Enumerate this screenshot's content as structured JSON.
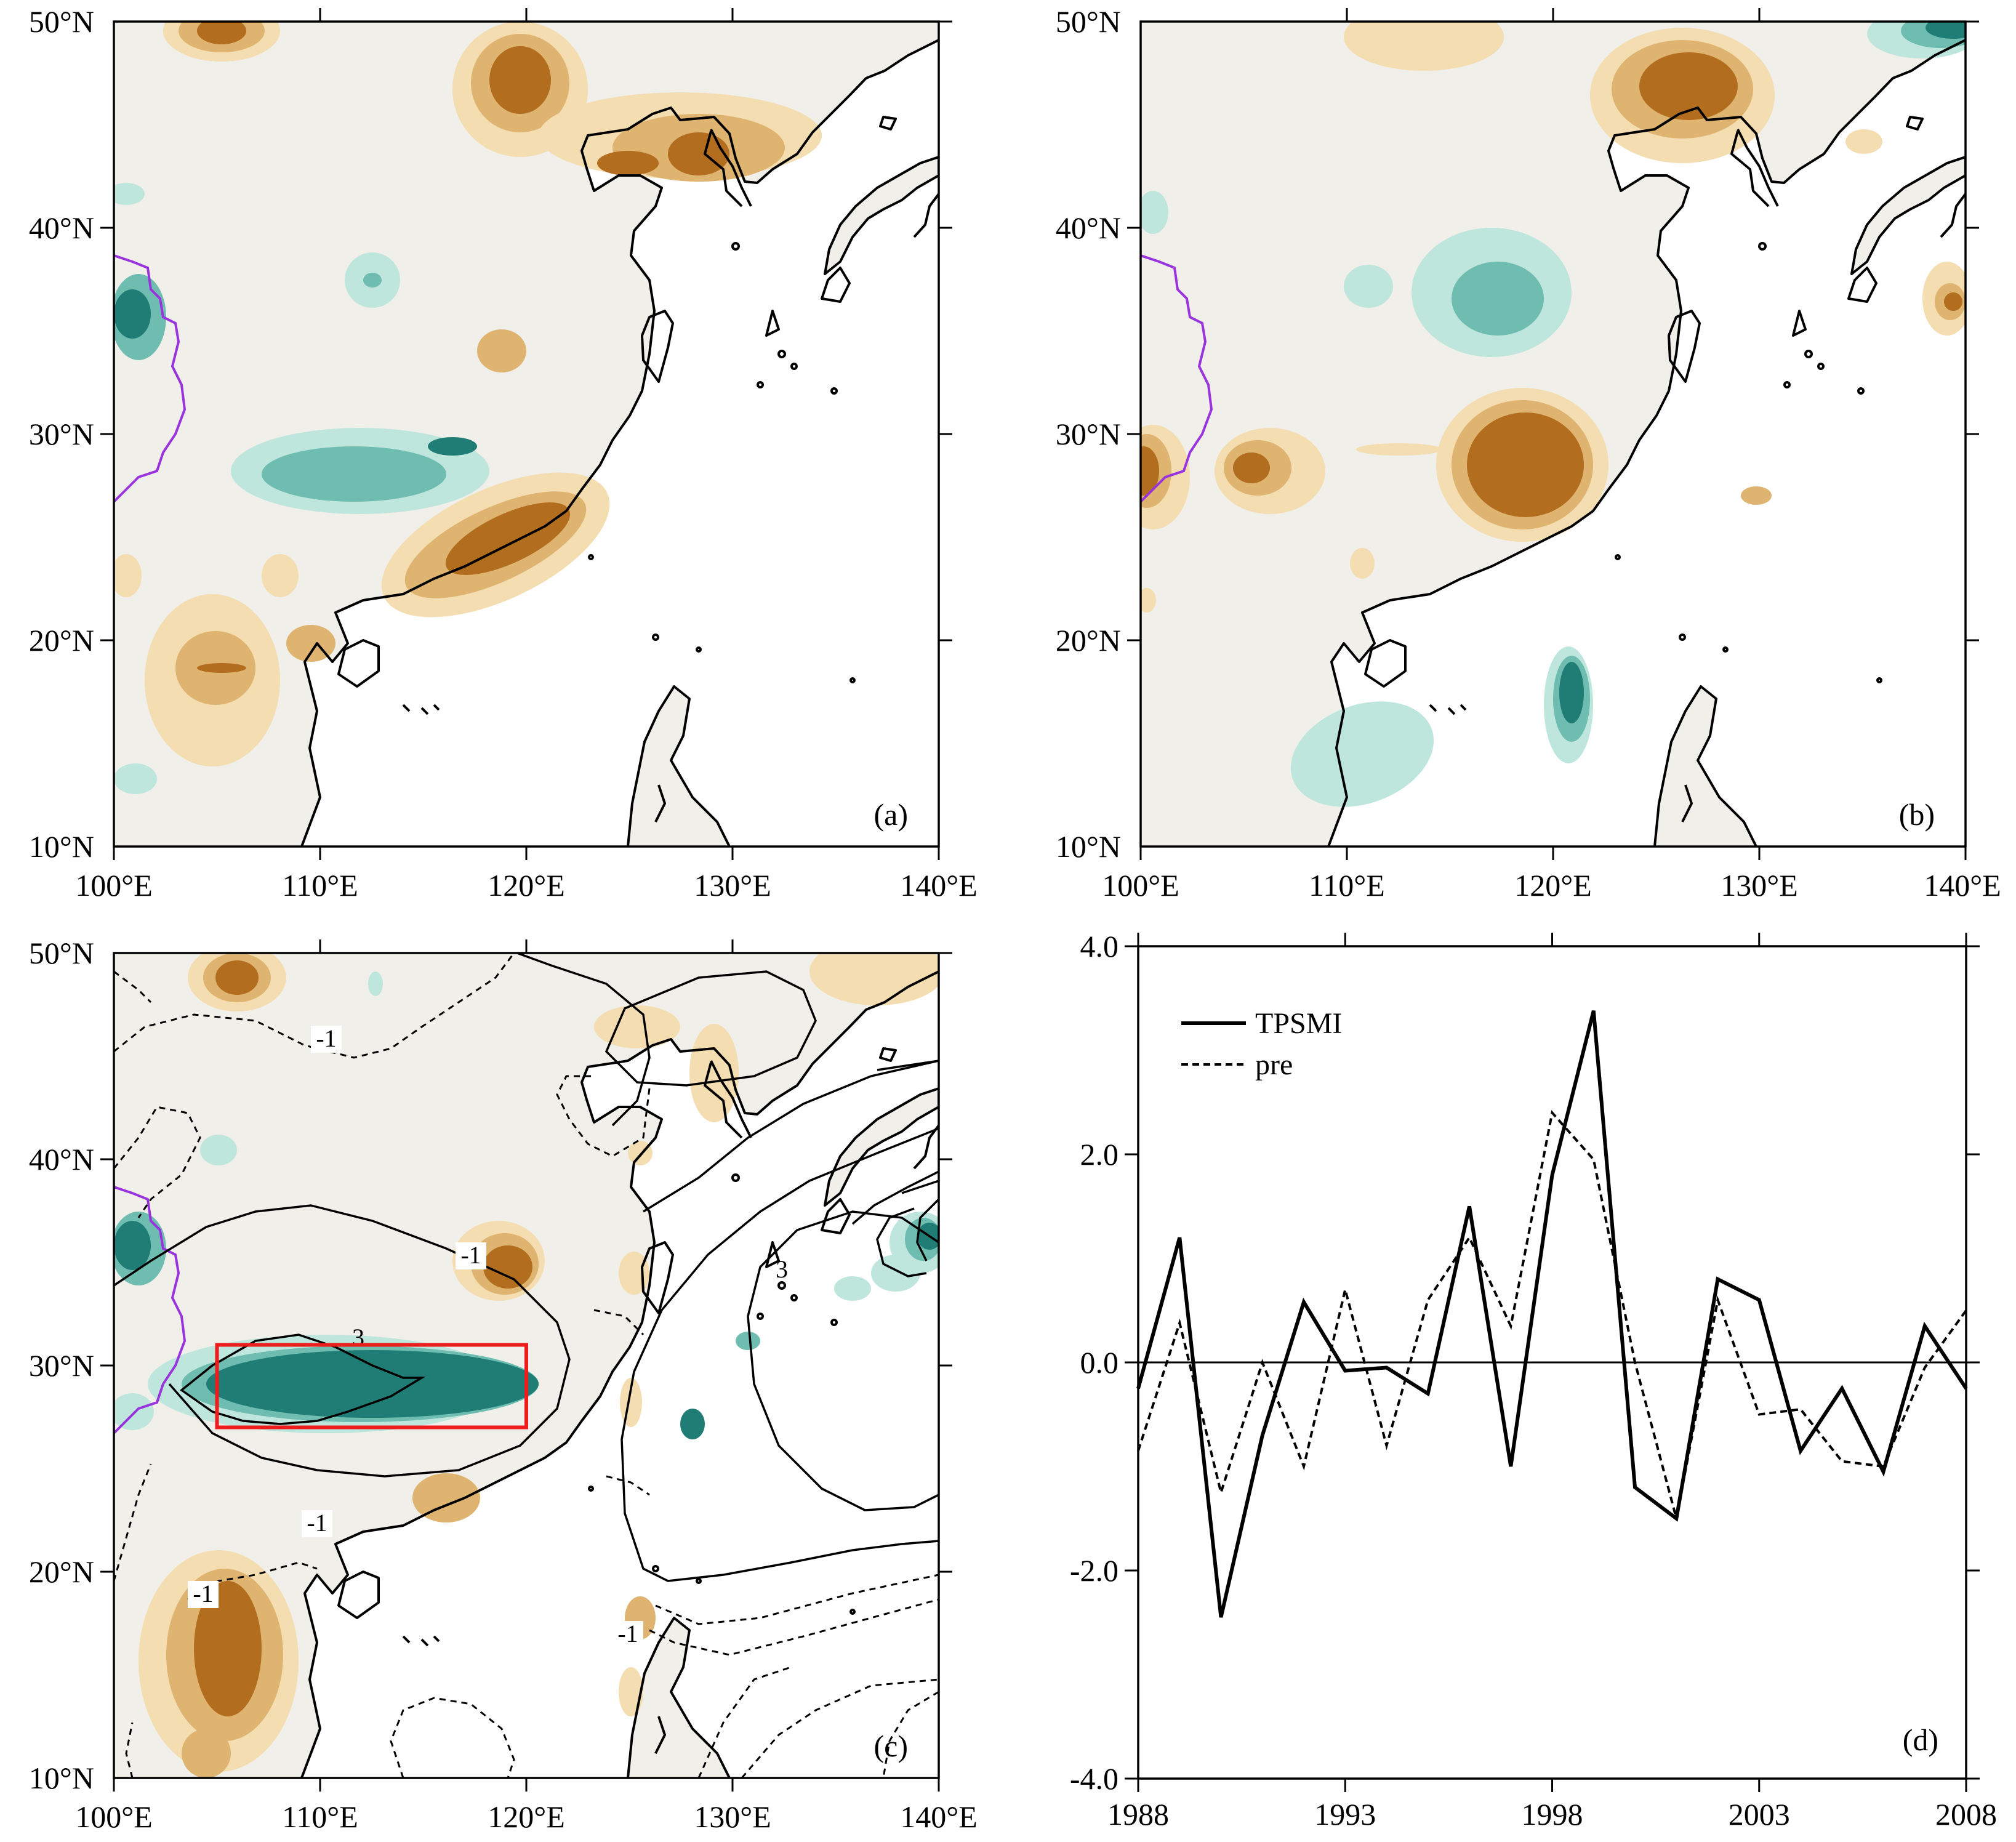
{
  "colors": {
    "land": "#f1efea",
    "ocean": "#ffffff",
    "dry1": "#f3ddb1",
    "dry2": "#dfb470",
    "dry3": "#b26d1e",
    "wet1": "#bfe6dd",
    "wet2": "#6fbcb1",
    "wet3": "#1f7d75",
    "tp_boundary": "#9933dd",
    "box": "#ee1c1c"
  },
  "map_axes": {
    "lon_labels": [
      "100°E",
      "110°E",
      "120°E",
      "130°E",
      "140°E"
    ],
    "lat_labels": [
      "10°N",
      "20°N",
      "30°N",
      "40°N",
      "50°N"
    ],
    "lon_range": [
      100,
      140
    ],
    "lat_range": [
      10,
      50
    ]
  },
  "panels": {
    "a": {
      "label": "(a)"
    },
    "b": {
      "label": "(b)"
    },
    "c": {
      "label": "(c)",
      "contour_labels": [
        "-1",
        "-1",
        "3",
        "-1",
        "-1",
        "-1",
        "3"
      ],
      "box": {
        "lon": [
          105,
          120
        ],
        "lat": [
          27,
          31
        ]
      }
    },
    "d": {
      "label": "(d)"
    }
  },
  "chart_data": {
    "type": "line",
    "x": [
      1988,
      1989,
      1990,
      1991,
      1992,
      1993,
      1994,
      1995,
      1996,
      1997,
      1998,
      1999,
      2000,
      2001,
      2002,
      2003,
      2004,
      2005,
      2006,
      2007,
      2008
    ],
    "series": [
      {
        "name": "TPSMI",
        "style": "solid",
        "values": [
          -0.25,
          1.2,
          -2.45,
          -0.7,
          0.58,
          -0.08,
          -0.05,
          -0.3,
          1.5,
          -1.0,
          1.8,
          3.38,
          -1.2,
          -1.5,
          0.8,
          0.6,
          -0.85,
          -0.25,
          -1.05,
          0.35,
          -0.25
        ]
      },
      {
        "name": "pre",
        "style": "dashed",
        "values": [
          -0.85,
          0.38,
          -1.25,
          0.0,
          -1.0,
          0.7,
          -0.8,
          0.6,
          1.2,
          0.35,
          2.4,
          1.95,
          0.0,
          -1.5,
          0.6,
          -0.5,
          -0.45,
          -0.95,
          -1.0,
          -0.05,
          0.5
        ]
      }
    ],
    "xticks": [
      "1988",
      "1993",
      "1998",
      "2003",
      "2008"
    ],
    "yticks": [
      "-4.0",
      "-2.0",
      "0.0",
      "2.0",
      "4.0"
    ],
    "xlim": [
      1988,
      2008
    ],
    "ylim": [
      -4,
      4
    ],
    "legend": "top-left",
    "zero_line": true
  }
}
